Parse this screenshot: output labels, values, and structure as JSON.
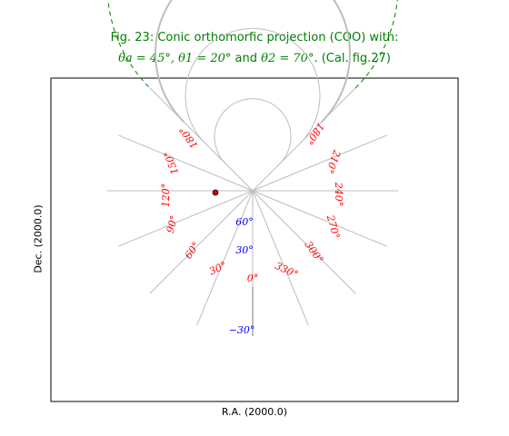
{
  "title": {
    "line1": "Fig. 23: Conic orthomorfic projection (COO) with:",
    "line2_math1": "θa = 45°, θ1 = 20°",
    "line2_and": " and ",
    "line2_math2": "θ2 = 70°",
    "line2_tail": ". (Cal. fig.27)"
  },
  "axes": {
    "xlabel": "R.A. (2000.0)",
    "ylabel": "Dec. (2000.0)"
  },
  "ra_labels": [
    "0°",
    "30°",
    "60°",
    "90°",
    "120°",
    "150°",
    "180°",
    "180°",
    "210°",
    "240°",
    "270°",
    "300°",
    "330°"
  ],
  "dec_labels": [
    "60°",
    "30°",
    "−30°"
  ],
  "colors": {
    "graticule": "#bdbdbd",
    "border": "#008000",
    "ra_label": "#ff0000",
    "dec_label": "#0000ff",
    "title": "#008000"
  }
}
